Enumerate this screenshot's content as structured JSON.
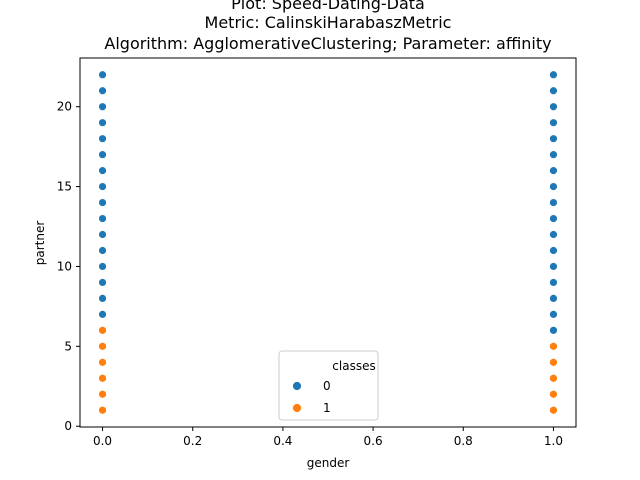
{
  "chart_data": {
    "type": "scatter",
    "title_lines": [
      "Plot: Speed-Dating-Data",
      "Metric: CalinskiHarabaszMetric",
      "Algorithm: AgglomerativeClustering; Parameter: affinity"
    ],
    "xlabel": "gender",
    "ylabel": "partner",
    "xlim": [
      -0.05,
      1.05
    ],
    "ylim": [
      -0.05,
      23.05
    ],
    "xticks": [
      0.0,
      0.2,
      0.4,
      0.6,
      0.8,
      1.0
    ],
    "xtick_labels": [
      "0.0",
      "0.2",
      "0.4",
      "0.6",
      "0.8",
      "1.0"
    ],
    "yticks": [
      0,
      5,
      10,
      15,
      20
    ],
    "ytick_labels": [
      "0",
      "5",
      "10",
      "15",
      "20"
    ],
    "grid": false,
    "legend": {
      "title": "classes",
      "placement": "lower-center",
      "entries": [
        {
          "label": "0",
          "color": "#1f77b4"
        },
        {
          "label": "1",
          "color": "#ff7f0e"
        }
      ]
    },
    "series": [
      {
        "class": "0",
        "color": "#1f77b4",
        "points": [
          [
            0,
            7
          ],
          [
            0,
            8
          ],
          [
            0,
            9
          ],
          [
            0,
            10
          ],
          [
            0,
            11
          ],
          [
            0,
            12
          ],
          [
            0,
            13
          ],
          [
            0,
            14
          ],
          [
            0,
            15
          ],
          [
            0,
            16
          ],
          [
            0,
            17
          ],
          [
            0,
            18
          ],
          [
            0,
            19
          ],
          [
            0,
            20
          ],
          [
            0,
            21
          ],
          [
            0,
            22
          ],
          [
            1,
            6
          ],
          [
            1,
            7
          ],
          [
            1,
            8
          ],
          [
            1,
            9
          ],
          [
            1,
            10
          ],
          [
            1,
            11
          ],
          [
            1,
            12
          ],
          [
            1,
            13
          ],
          [
            1,
            14
          ],
          [
            1,
            15
          ],
          [
            1,
            16
          ],
          [
            1,
            17
          ],
          [
            1,
            18
          ],
          [
            1,
            19
          ],
          [
            1,
            20
          ],
          [
            1,
            21
          ],
          [
            1,
            22
          ]
        ]
      },
      {
        "class": "1",
        "color": "#ff7f0e",
        "points": [
          [
            0,
            1
          ],
          [
            0,
            2
          ],
          [
            0,
            3
          ],
          [
            0,
            4
          ],
          [
            0,
            5
          ],
          [
            0,
            6
          ],
          [
            1,
            1
          ],
          [
            1,
            2
          ],
          [
            1,
            3
          ],
          [
            1,
            4
          ],
          [
            1,
            5
          ]
        ]
      }
    ]
  }
}
